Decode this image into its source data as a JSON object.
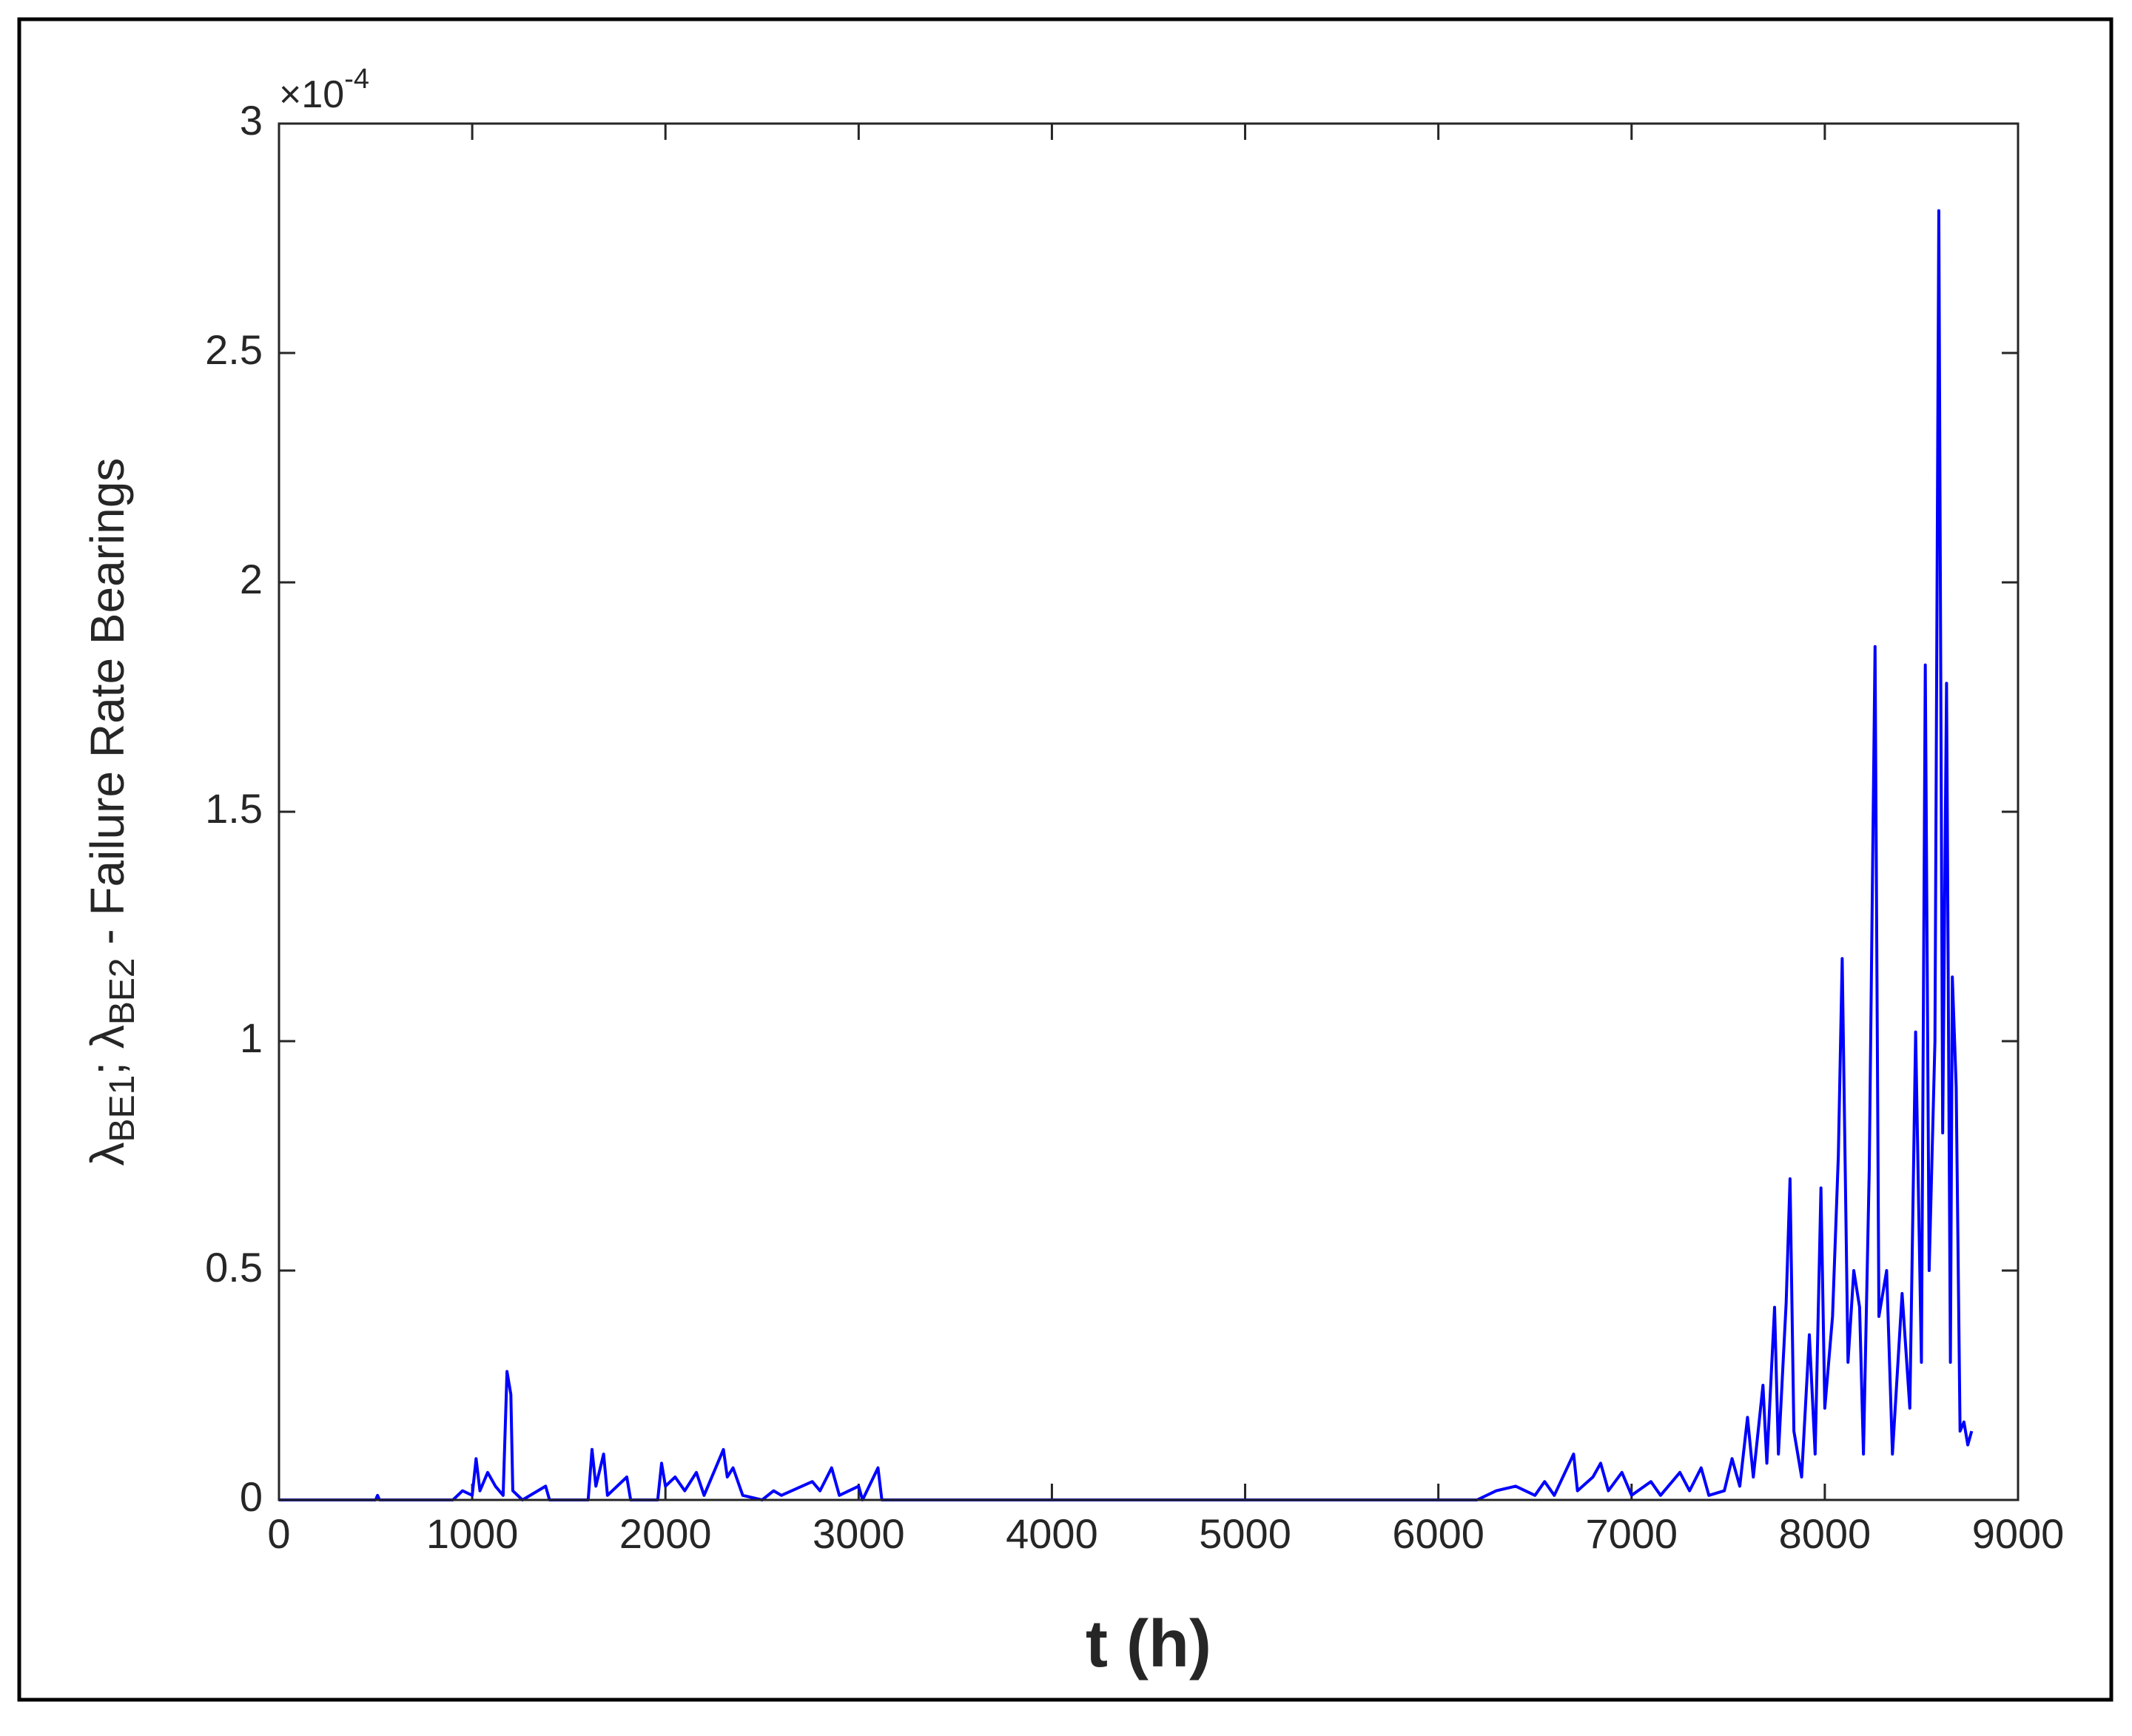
{
  "chart_data": {
    "type": "line",
    "xlabel": "t (h)",
    "ylabel": [
      "λ",
      "BE1",
      "; λ",
      "BE2",
      " - Failure Rate Bearings"
    ],
    "y_multiplier": {
      "base": "×10",
      "exponent": "-4"
    },
    "xlim": [
      0,
      9000
    ],
    "xticks": [
      0,
      1000,
      2000,
      3000,
      4000,
      5000,
      6000,
      7000,
      8000,
      9000
    ],
    "ylim": [
      0,
      3
    ],
    "yticks": [
      0,
      0.5,
      1,
      1.5,
      2,
      2.5,
      3
    ],
    "grid": false,
    "series": [
      {
        "color": "#0000ff",
        "x": [
          0,
          500,
          510,
          520,
          900,
          950,
          1000,
          1020,
          1040,
          1080,
          1120,
          1160,
          1180,
          1200,
          1210,
          1260,
          1380,
          1400,
          1600,
          1620,
          1640,
          1680,
          1700,
          1800,
          1820,
          1960,
          1980,
          2000,
          2050,
          2100,
          2160,
          2200,
          2300,
          2320,
          2350,
          2400,
          2500,
          2560,
          2600,
          2760,
          2800,
          2860,
          2900,
          3000,
          3020,
          3100,
          3120,
          4000,
          6200,
          6300,
          6400,
          6500,
          6550,
          6600,
          6700,
          6720,
          6800,
          6840,
          6880,
          6950,
          7000,
          7100,
          7150,
          7250,
          7300,
          7360,
          7400,
          7480,
          7520,
          7560,
          7600,
          7630,
          7680,
          7700,
          7740,
          7760,
          7800,
          7820,
          7840,
          7880,
          7920,
          7950,
          7980,
          8000,
          8040,
          8070,
          8090,
          8120,
          8150,
          8180,
          8200,
          8230,
          8260,
          8280,
          8320,
          8350,
          8400,
          8440,
          8470,
          8500,
          8520,
          8540,
          8570,
          8590,
          8610,
          8630,
          8650,
          8660,
          8680,
          8700,
          8720,
          8740,
          8760
        ],
        "values": [
          0,
          0,
          0.01,
          0,
          0,
          0.02,
          0.01,
          0.09,
          0.02,
          0.06,
          0.03,
          0.01,
          0.28,
          0.23,
          0.02,
          0,
          0.03,
          0,
          0,
          0.11,
          0.03,
          0.1,
          0.01,
          0.05,
          0,
          0,
          0.08,
          0.03,
          0.05,
          0.02,
          0.06,
          0.01,
          0.11,
          0.05,
          0.07,
          0.01,
          0,
          0.02,
          0.01,
          0.04,
          0.02,
          0.07,
          0.01,
          0.03,
          0,
          0.07,
          0,
          0,
          0,
          0.02,
          0.03,
          0.01,
          0.04,
          0.01,
          0.1,
          0.02,
          0.05,
          0.08,
          0.02,
          0.06,
          0.01,
          0.04,
          0.01,
          0.06,
          0.02,
          0.07,
          0.01,
          0.02,
          0.09,
          0.03,
          0.18,
          0.05,
          0.25,
          0.08,
          0.42,
          0.1,
          0.43,
          0.7,
          0.15,
          0.05,
          0.36,
          0.1,
          0.68,
          0.2,
          0.4,
          0.75,
          1.18,
          0.3,
          0.5,
          0.42,
          0.1,
          0.72,
          1.86,
          0.4,
          0.5,
          0.1,
          0.45,
          0.2,
          1.02,
          0.3,
          1.82,
          0.5,
          1.0,
          2.81,
          0.8,
          1.78,
          0.3,
          1.14,
          0.9,
          0.15,
          0.17,
          0.12,
          0.15
        ]
      }
    ]
  }
}
